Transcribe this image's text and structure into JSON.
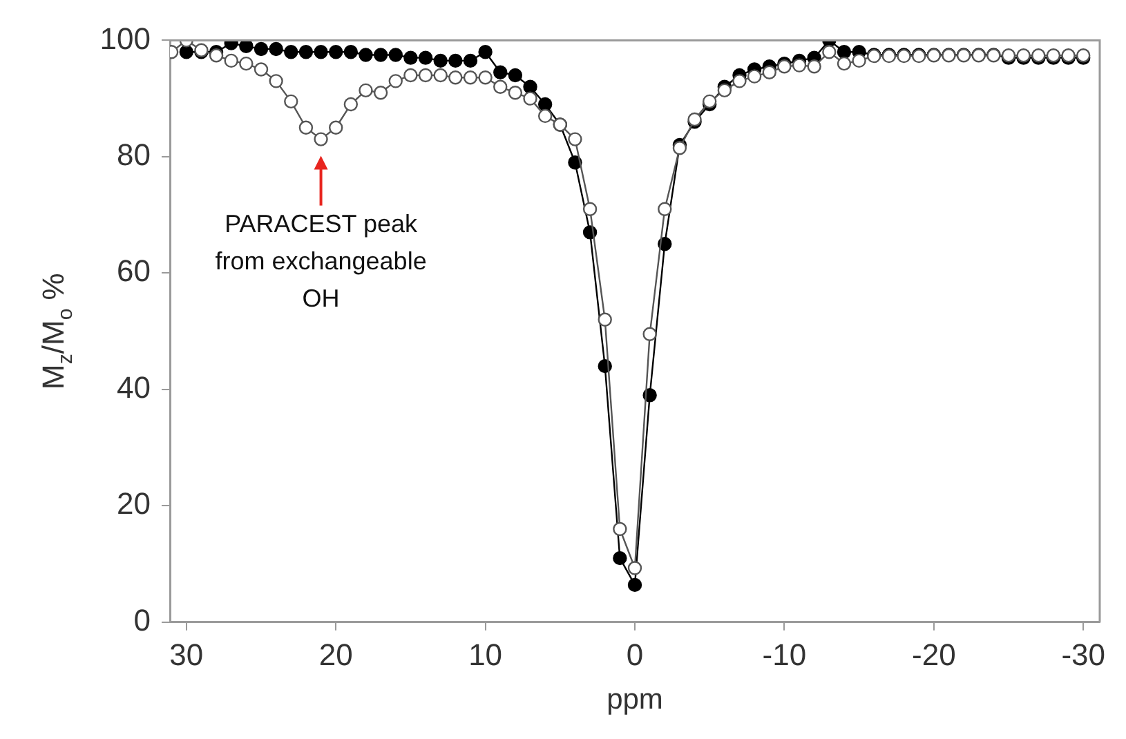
{
  "chart_data": {
    "type": "line",
    "xlabel": "ppm",
    "ylabel": "M$_{z}$/M$_{o}$ %",
    "xlim": [
      31.1,
      -31.1
    ],
    "xticks": [
      30,
      20,
      10,
      0,
      -10,
      -20,
      -30
    ],
    "ylim": [
      0,
      100
    ],
    "yticks": [
      0,
      20,
      40,
      60,
      80,
      100
    ],
    "grid": false,
    "legend": false,
    "marker": "circle",
    "line_style": "solid",
    "annotations": [
      {
        "text": "PARACEST peak\nfrom exchangeable\nOH",
        "x": 21,
        "y": 83
      }
    ],
    "series": [
      {
        "color": "#555555",
        "x": [
          31,
          30,
          29,
          28,
          27,
          26,
          25,
          24,
          23,
          22,
          21,
          20,
          19,
          18,
          17,
          16,
          15,
          14,
          13,
          12,
          11,
          10,
          9,
          8,
          7,
          6,
          5,
          4,
          3,
          2,
          1,
          0,
          -1,
          -2,
          -3,
          -4,
          -5,
          -6,
          -7,
          -8,
          -9,
          -10,
          -11,
          -12,
          -13,
          -14,
          -15,
          -16,
          -17,
          -18,
          -19,
          -20,
          -21,
          -22,
          -23,
          -24,
          -25,
          -26,
          -27,
          -28,
          -29,
          -30
        ],
        "values": [
          98,
          100,
          98.3,
          97.4,
          96.5,
          96,
          95,
          93,
          89.5,
          85,
          83,
          85,
          89,
          91.4,
          91,
          93,
          94,
          94,
          94,
          93.6,
          93.6,
          93.6,
          92,
          91,
          90,
          87,
          85.5,
          83,
          71,
          52,
          16,
          9.3,
          49.5,
          71,
          81.5,
          86.4,
          89.5,
          91.4,
          93,
          93.8,
          94.5,
          95.5,
          95.7,
          95.5,
          98,
          96,
          96.5,
          97.3,
          97.3,
          97.3,
          97.3,
          97.4,
          97.4,
          97.4,
          97.4,
          97.4,
          97.4,
          97.4,
          97.4,
          97.4,
          97.4,
          97.4
        ]
      },
      {
        "color": "#000000",
        "x": [
          30,
          29,
          28,
          27,
          26,
          25,
          24,
          23,
          22,
          21,
          20,
          19,
          18,
          17,
          16,
          15,
          14,
          13,
          12,
          11,
          10,
          9,
          8,
          7,
          6,
          5,
          4,
          3,
          2,
          1,
          0,
          -1,
          -2,
          -3,
          -4,
          -5,
          -6,
          -7,
          -8,
          -9,
          -10,
          -11,
          -12,
          -13,
          -14,
          -15,
          -16,
          -17,
          -18,
          -19,
          -20,
          -21,
          -22,
          -23,
          -24,
          -25,
          -26,
          -27,
          -28,
          -29,
          -30
        ],
        "values": [
          98,
          98,
          98,
          99.5,
          99,
          98.5,
          98.5,
          98,
          98,
          98,
          98,
          98,
          97.5,
          97.5,
          97.5,
          97,
          97,
          96.5,
          96.5,
          96.5,
          98,
          94.5,
          94,
          92,
          89,
          85.5,
          79,
          67,
          44,
          11,
          6.4,
          39,
          65,
          82,
          86,
          89,
          92,
          94,
          95,
          95.5,
          96,
          96.5,
          97,
          100,
          98,
          98,
          97.5,
          97.5,
          97.5,
          97.5,
          97.5,
          97.5,
          97.5,
          97.5,
          97.5,
          97,
          97,
          97,
          97,
          97,
          97
        ]
      }
    ]
  }
}
